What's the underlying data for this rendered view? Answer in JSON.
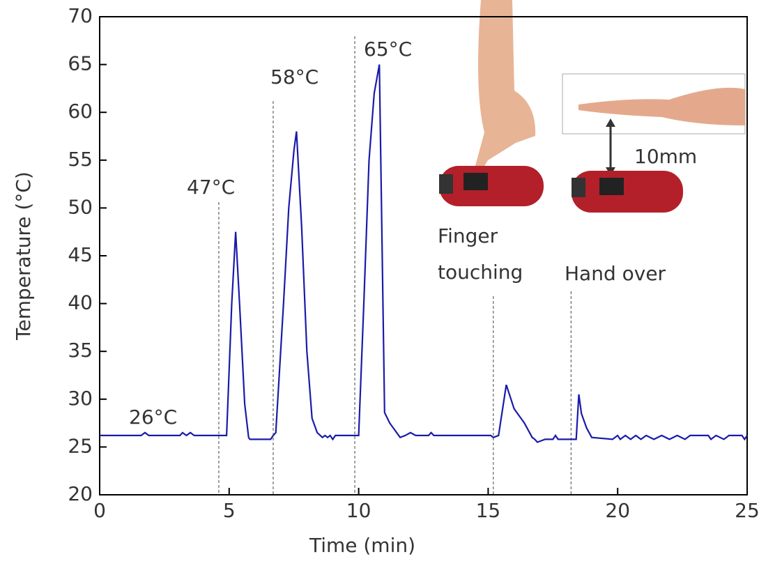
{
  "chart_data": {
    "type": "line",
    "xlabel": "Time (min)",
    "ylabel": "Temperature (°C)",
    "xlim": [
      0,
      25
    ],
    "xticks": [
      0,
      5,
      10,
      15,
      20,
      25
    ],
    "ylim": [
      20,
      70
    ],
    "yticks": [
      20,
      25,
      30,
      35,
      40,
      45,
      50,
      55,
      60,
      65,
      70
    ],
    "series": [
      {
        "color": "#1a1aaa",
        "x": [
          0,
          1.6,
          1.75,
          1.9,
          3.1,
          3.2,
          3.35,
          3.5,
          3.65,
          4.9,
          5.1,
          5.25,
          5.4,
          5.6,
          5.75,
          5.8,
          6.6,
          6.7,
          6.8,
          7.1,
          7.3,
          7.5,
          7.6,
          7.8,
          8.0,
          8.2,
          8.4,
          8.6,
          8.7,
          8.8,
          8.9,
          9.0,
          9.1,
          10.0,
          10.2,
          10.4,
          10.6,
          10.8,
          11.0,
          11.2,
          11.6,
          11.8,
          12.0,
          12.2,
          12.7,
          12.8,
          12.9,
          15.1,
          15.2,
          15.4,
          15.7,
          16.0,
          16.4,
          16.7,
          16.8,
          16.9,
          17.2,
          17.5,
          17.6,
          17.7,
          18.4,
          18.5,
          18.6,
          18.8,
          19.0,
          19.8,
          20.0,
          20.1,
          20.3,
          20.5,
          20.7,
          20.9,
          21.1,
          21.4,
          21.7,
          22.0,
          22.3,
          22.6,
          22.8,
          23.5,
          23.6,
          23.8,
          24.1,
          24.3,
          24.8,
          24.9,
          25
        ],
        "values": [
          26.2,
          26.2,
          26.5,
          26.2,
          26.2,
          26.5,
          26.2,
          26.5,
          26.2,
          26.2,
          40,
          47.5,
          40,
          29.5,
          26,
          25.8,
          25.8,
          26.2,
          26.5,
          40,
          50,
          56,
          58,
          48,
          35,
          28,
          26.5,
          26,
          26.2,
          26,
          26.2,
          25.8,
          26.2,
          26.2,
          40,
          55,
          62,
          65,
          28.6,
          27.5,
          26,
          26.2,
          26.5,
          26.2,
          26.2,
          26.5,
          26.2,
          26.2,
          26,
          26.2,
          31.5,
          29,
          27.5,
          26,
          25.8,
          25.5,
          25.8,
          25.8,
          26.2,
          25.8,
          25.8,
          30.5,
          28.5,
          27,
          26,
          25.8,
          26.2,
          25.8,
          26.2,
          25.8,
          26.2,
          25.8,
          26.2,
          25.8,
          26.2,
          25.8,
          26.2,
          25.8,
          26.2,
          26.2,
          25.8,
          26.2,
          25.8,
          26.2,
          26.2,
          25.8,
          26.2
        ]
      }
    ],
    "event_lines": [
      4.6,
      6.7,
      9.85,
      15.2,
      18.2
    ],
    "annotations": [
      "26°C",
      "47°C",
      "58°C",
      "65°C",
      "Finger",
      "touching",
      "Hand over",
      "10mm"
    ]
  }
}
